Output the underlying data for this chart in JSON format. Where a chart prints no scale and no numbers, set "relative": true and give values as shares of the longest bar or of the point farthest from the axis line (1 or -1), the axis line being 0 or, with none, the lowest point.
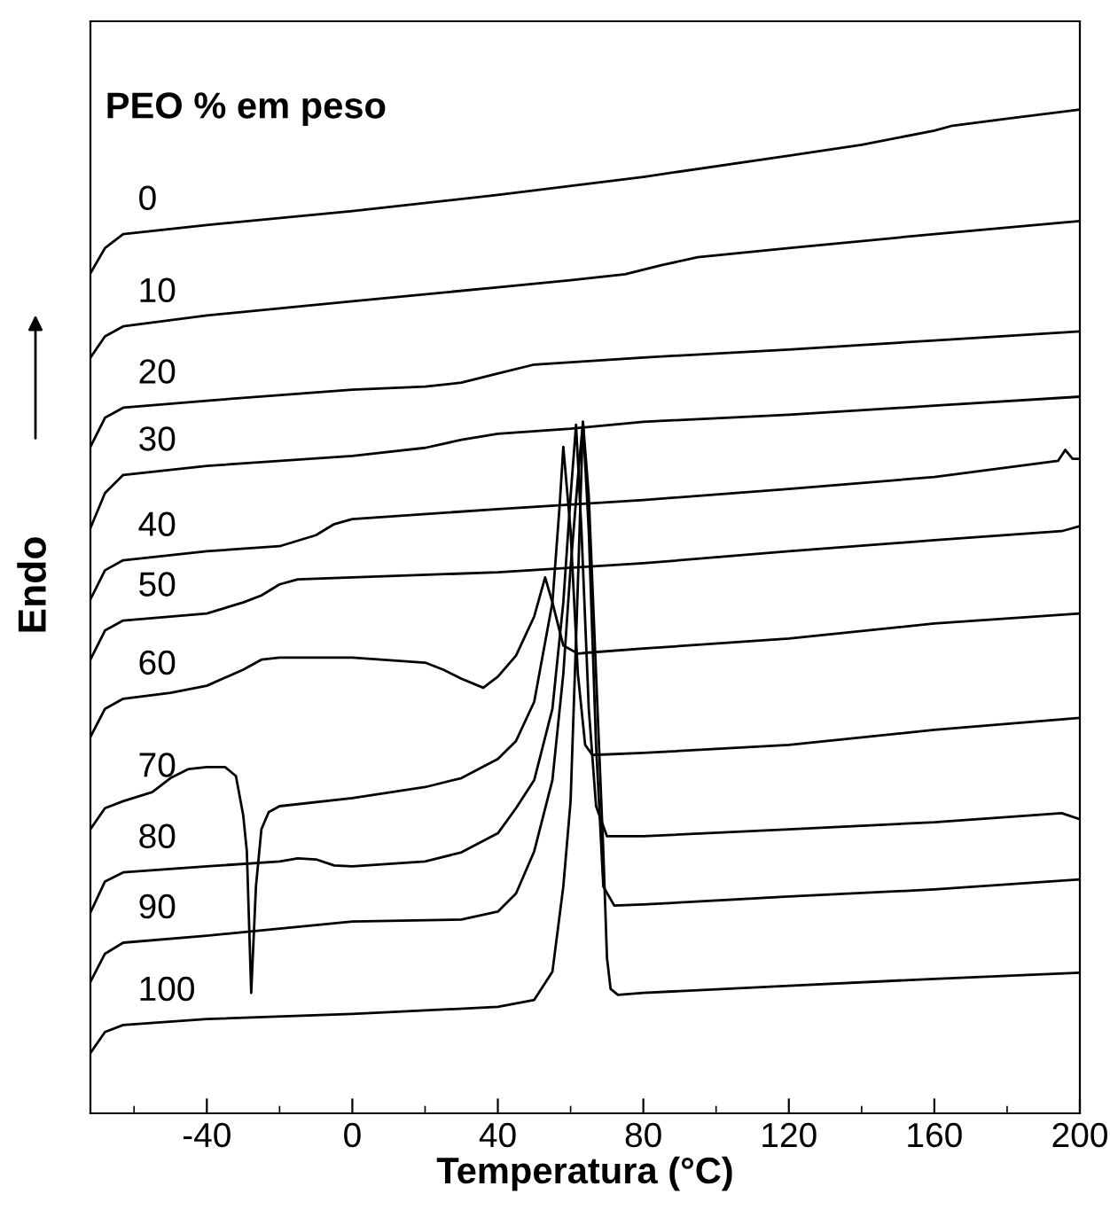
{
  "chart_data": {
    "type": "line",
    "relative": true,
    "color": "#000000",
    "xlabel": "Temperatura (°C)",
    "ylabel": "Endo",
    "legend_title": "PEO % em peso",
    "xlim": [
      -72,
      200
    ],
    "xticks": [
      -40,
      0,
      40,
      80,
      120,
      160,
      200
    ],
    "grid": false,
    "legend": false,
    "series": [
      {
        "name": "0",
        "x": [
          -72,
          -68,
          -63,
          -40,
          0,
          40,
          80,
          120,
          140,
          160,
          165,
          180,
          200
        ],
        "values": [
          0.837,
          0.862,
          0.876,
          0.885,
          0.899,
          0.915,
          0.933,
          0.954,
          0.965,
          0.979,
          0.984,
          0.991,
          1.0
        ]
      },
      {
        "name": "10",
        "x": [
          -72,
          -68,
          -63,
          -40,
          0,
          40,
          60,
          75,
          85,
          95,
          120,
          160,
          200
        ],
        "values": [
          0.753,
          0.774,
          0.784,
          0.795,
          0.809,
          0.823,
          0.83,
          0.836,
          0.845,
          0.853,
          0.862,
          0.876,
          0.889
        ]
      },
      {
        "name": "20",
        "x": [
          -72,
          -68,
          -63,
          -40,
          0,
          20,
          30,
          40,
          50,
          80,
          120,
          160,
          200
        ],
        "values": [
          0.664,
          0.693,
          0.703,
          0.71,
          0.721,
          0.724,
          0.728,
          0.737,
          0.746,
          0.753,
          0.761,
          0.77,
          0.779
        ]
      },
      {
        "name": "30",
        "x": [
          -72,
          -68,
          -63,
          -40,
          0,
          20,
          30,
          40,
          60,
          80,
          120,
          160,
          200
        ],
        "values": [
          0.583,
          0.618,
          0.636,
          0.645,
          0.655,
          0.663,
          0.671,
          0.677,
          0.682,
          0.689,
          0.696,
          0.705,
          0.714
        ]
      },
      {
        "name": "40",
        "x": [
          -72,
          -68,
          -63,
          -40,
          -20,
          -10,
          -5,
          0,
          40,
          80,
          120,
          160,
          194,
          196,
          198,
          200
        ],
        "values": [
          0.512,
          0.541,
          0.551,
          0.56,
          0.565,
          0.576,
          0.587,
          0.592,
          0.602,
          0.611,
          0.622,
          0.634,
          0.65,
          0.661,
          0.652,
          0.652
        ]
      },
      {
        "name": "50",
        "x": [
          -72,
          -68,
          -63,
          -40,
          -30,
          -25,
          -20,
          -15,
          0,
          40,
          80,
          120,
          160,
          195,
          200
        ],
        "values": [
          0.452,
          0.481,
          0.491,
          0.498,
          0.509,
          0.516,
          0.527,
          0.532,
          0.534,
          0.539,
          0.548,
          0.56,
          0.571,
          0.58,
          0.585
        ]
      },
      {
        "name": "60",
        "x": [
          -72,
          -68,
          -63,
          -50,
          -40,
          -30,
          -25,
          -20,
          0,
          20,
          25,
          30,
          36,
          40,
          45,
          50,
          53,
          55,
          58,
          62,
          65,
          80,
          120,
          160,
          200
        ],
        "values": [
          0.375,
          0.403,
          0.413,
          0.419,
          0.426,
          0.442,
          0.452,
          0.454,
          0.454,
          0.449,
          0.442,
          0.433,
          0.424,
          0.435,
          0.456,
          0.495,
          0.534,
          0.509,
          0.466,
          0.458,
          0.459,
          0.463,
          0.473,
          0.488,
          0.498
        ]
      },
      {
        "name": "70",
        "x": [
          -72,
          -68,
          -63,
          -55,
          -50,
          -45,
          -40,
          -35,
          -32,
          -30,
          -29,
          -27.8,
          -26.5,
          -25,
          -23,
          -20,
          0,
          20,
          30,
          40,
          45,
          50,
          55,
          57,
          58,
          60,
          62,
          64,
          66,
          80,
          120,
          160,
          200
        ],
        "values": [
          0.283,
          0.304,
          0.311,
          0.32,
          0.334,
          0.343,
          0.345,
          0.345,
          0.336,
          0.297,
          0.261,
          0.12,
          0.226,
          0.283,
          0.3,
          0.306,
          0.314,
          0.325,
          0.334,
          0.353,
          0.371,
          0.41,
          0.509,
          0.606,
          0.664,
          0.58,
          0.438,
          0.367,
          0.357,
          0.359,
          0.367,
          0.382,
          0.394
        ]
      },
      {
        "name": "80",
        "x": [
          -72,
          -68,
          -63,
          -40,
          -20,
          -15,
          -10,
          -5,
          0,
          20,
          30,
          40,
          45,
          50,
          55,
          58,
          60,
          61.5,
          63,
          65,
          67,
          70,
          80,
          120,
          160,
          195,
          200
        ],
        "values": [
          0.2,
          0.231,
          0.24,
          0.246,
          0.251,
          0.254,
          0.253,
          0.247,
          0.246,
          0.251,
          0.26,
          0.279,
          0.304,
          0.332,
          0.403,
          0.509,
          0.615,
          0.686,
          0.58,
          0.403,
          0.306,
          0.276,
          0.276,
          0.283,
          0.29,
          0.299,
          0.293
        ]
      },
      {
        "name": "90",
        "x": [
          -72,
          -68,
          -63,
          -40,
          0,
          30,
          40,
          45,
          50,
          55,
          58,
          60,
          62,
          63.4,
          65,
          67,
          69,
          72,
          80,
          120,
          160,
          200
        ],
        "values": [
          0.131,
          0.159,
          0.17,
          0.177,
          0.191,
          0.193,
          0.201,
          0.219,
          0.261,
          0.332,
          0.438,
          0.544,
          0.633,
          0.689,
          0.58,
          0.367,
          0.226,
          0.207,
          0.208,
          0.216,
          0.223,
          0.233
        ]
      },
      {
        "name": "100",
        "x": [
          -72,
          -68,
          -63,
          -40,
          0,
          40,
          50,
          55,
          58,
          60,
          62,
          63.4,
          65,
          67,
          69,
          70,
          71,
          73,
          80,
          120,
          160,
          200
        ],
        "values": [
          0.06,
          0.081,
          0.088,
          0.094,
          0.099,
          0.106,
          0.113,
          0.141,
          0.226,
          0.311,
          0.527,
          0.689,
          0.615,
          0.438,
          0.261,
          0.155,
          0.124,
          0.118,
          0.12,
          0.127,
          0.134,
          0.14
        ]
      }
    ]
  }
}
